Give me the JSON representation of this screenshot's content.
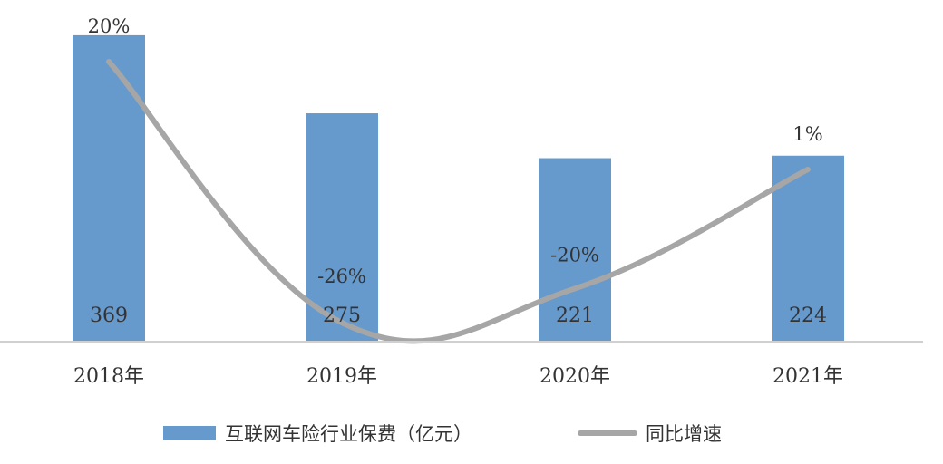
{
  "chart_data": {
    "type": "bar",
    "categories": [
      "2018年",
      "2019年",
      "2020年",
      "2021年"
    ],
    "series": [
      {
        "name": "互联网车险行业保费（亿元）",
        "type": "bar",
        "axis": "left",
        "color": "#6699cc",
        "values": [
          369,
          275,
          221,
          224
        ],
        "labels": [
          "369",
          "275",
          "221",
          "224"
        ]
      },
      {
        "name": "同比增速",
        "type": "line",
        "axis": "right",
        "smooth": true,
        "color": "#a6a6a6",
        "values": [
          20,
          -26,
          -20,
          1
        ],
        "labels": [
          "20%",
          "-26%",
          "-20%",
          "1%"
        ]
      }
    ],
    "ylim_left": [
      0,
      370
    ],
    "ylim_right": [
      -30,
      25
    ],
    "grid": false,
    "legend_position": "bottom"
  }
}
